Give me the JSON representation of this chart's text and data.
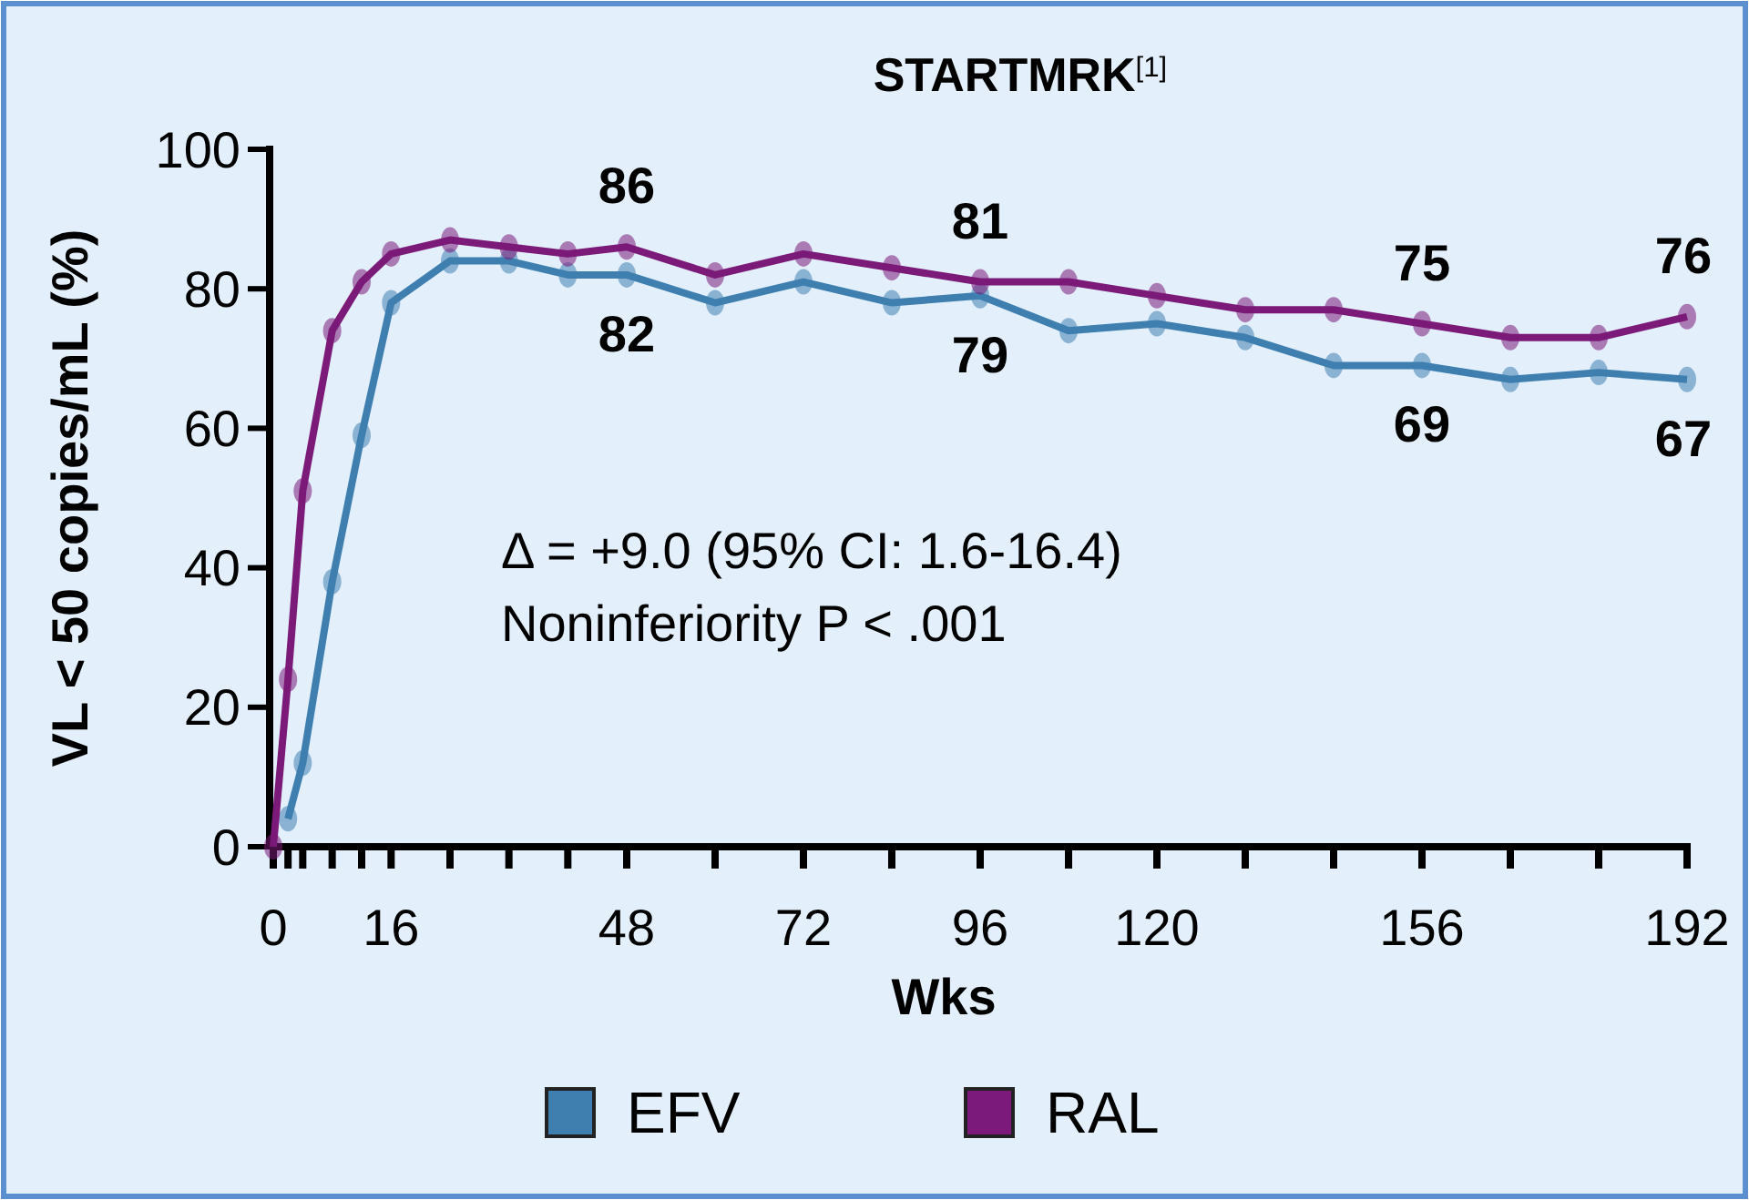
{
  "chart_data": {
    "type": "line",
    "title": "STARTMRK$^{[1]}$",
    "xlabel": "Wks",
    "ylabel": "VL < 50 copies/mL (%)",
    "annotations": [
      "Δ = +9.0 (95% CI: 1.6-16.4)",
      "Noninferiority P < .001"
    ],
    "xlim": [
      0,
      192
    ],
    "xticks": [
      0,
      {
        "value": 2,
        "label": null
      },
      {
        "value": 4,
        "label": null
      },
      {
        "value": 8,
        "label": null
      },
      {
        "value": 12,
        "label": null
      },
      16,
      {
        "value": 24,
        "label": null
      },
      {
        "value": 32,
        "label": null
      },
      {
        "value": 40,
        "label": null
      },
      48,
      {
        "value": 60,
        "label": null
      },
      72,
      {
        "value": 84,
        "label": null
      },
      96,
      {
        "value": 108,
        "label": null
      },
      120,
      {
        "value": 132,
        "label": null
      },
      {
        "value": 144,
        "label": null
      },
      156,
      {
        "value": 168,
        "label": null
      },
      {
        "value": 180,
        "label": null
      },
      192
    ],
    "ylim": [
      0,
      100
    ],
    "yticks": [
      0,
      20,
      40,
      60,
      80,
      100
    ],
    "series": [
      {
        "name": "EFV",
        "color": "#3f7fb0",
        "x": [
          2,
          4,
          8,
          12,
          16,
          24,
          32,
          40,
          48,
          60,
          72,
          84,
          96,
          108,
          120,
          132,
          144,
          156,
          168,
          180,
          192
        ],
        "values": [
          4,
          12,
          38,
          59,
          78,
          84,
          84,
          82,
          82,
          78,
          81,
          78,
          79,
          74,
          75,
          73,
          69,
          69,
          67,
          68,
          67
        ],
        "value_labels": [
          null,
          null,
          null,
          null,
          null,
          null,
          null,
          null,
          "82",
          null,
          null,
          null,
          "79",
          null,
          null,
          null,
          null,
          "69",
          null,
          null,
          "67"
        ]
      },
      {
        "name": "RAL",
        "color": "#7b1a78",
        "x": [
          0,
          2,
          4,
          8,
          12,
          16,
          24,
          32,
          40,
          48,
          60,
          72,
          84,
          96,
          108,
          120,
          132,
          144,
          156,
          168,
          180,
          192
        ],
        "values": [
          0,
          24,
          51,
          74,
          81,
          85,
          87,
          86,
          85,
          86,
          82,
          85,
          83,
          81,
          81,
          79,
          77,
          77,
          75,
          73,
          73,
          76
        ],
        "value_labels": [
          null,
          null,
          null,
          null,
          null,
          null,
          null,
          null,
          null,
          "86",
          null,
          null,
          null,
          "81",
          null,
          null,
          null,
          null,
          "75",
          null,
          null,
          "76"
        ]
      }
    ],
    "marker": "circle",
    "line_style": "solid",
    "grid": false,
    "legend": "bottom"
  }
}
